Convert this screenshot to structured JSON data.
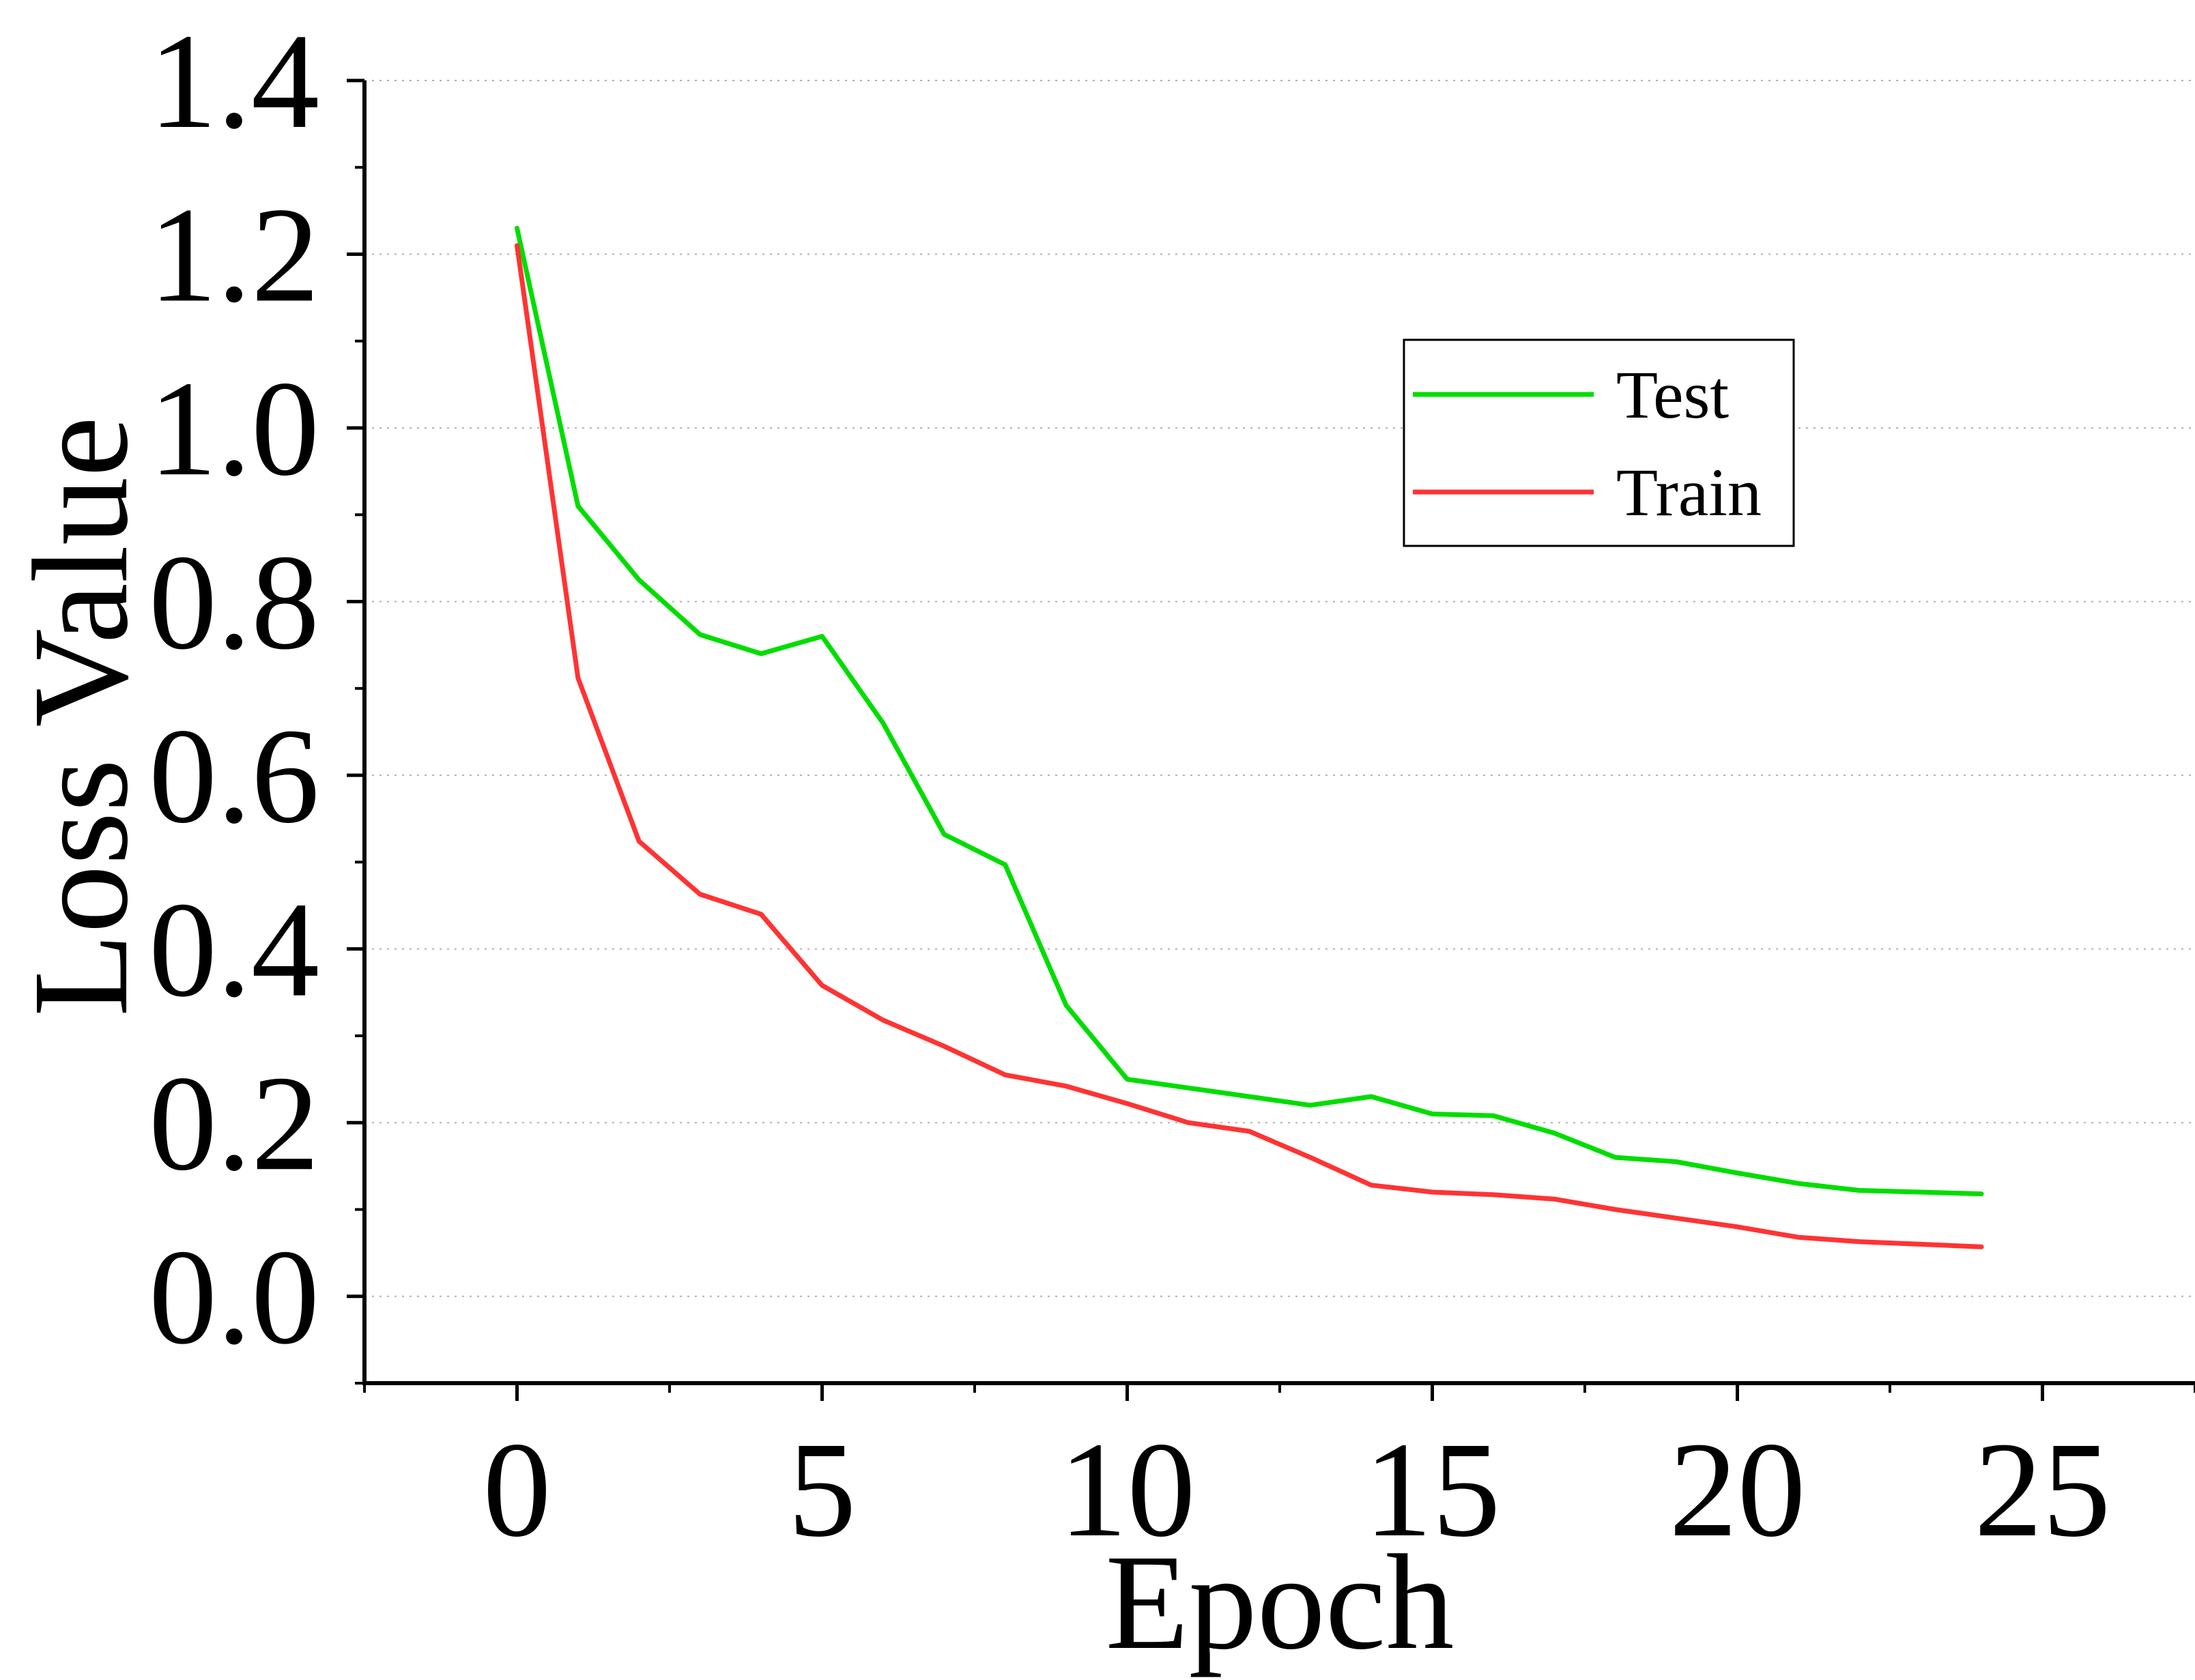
{
  "chart_data": {
    "type": "line",
    "xlabel": "Epoch",
    "ylabel": "Loss Value",
    "xlim": [
      -2.5,
      27.5
    ],
    "ylim": [
      -0.1,
      1.4
    ],
    "xticks": [
      0,
      5,
      10,
      15,
      20,
      25
    ],
    "xtick_labels": [
      "0",
      "5",
      "10",
      "15",
      "20",
      "25"
    ],
    "yticks": [
      0.0,
      0.2,
      0.4,
      0.6,
      0.8,
      1.0,
      1.2,
      1.4
    ],
    "ytick_labels": [
      "0.0",
      "0.2",
      "0.4",
      "0.6",
      "0.8",
      "1.0",
      "1.2",
      "1.4"
    ],
    "grid": "horizontal dotted",
    "legend_position": "upper-right",
    "x": [
      0,
      1,
      2,
      3,
      4,
      5,
      6,
      7,
      8,
      9,
      10,
      11,
      12,
      13,
      14,
      15,
      16,
      17,
      18,
      19,
      20,
      21,
      22,
      23,
      24
    ],
    "series": [
      {
        "name": "Test",
        "color": "#00dd00",
        "values": [
          1.23,
          0.91,
          0.825,
          0.762,
          0.74,
          0.76,
          0.66,
          0.532,
          0.497,
          0.335,
          0.25,
          0.24,
          0.23,
          0.22,
          0.23,
          0.21,
          0.208,
          0.188,
          0.16,
          0.155,
          0.142,
          0.13,
          0.122,
          0.12,
          0.118
        ]
      },
      {
        "name": "Train",
        "color": "#ff3333",
        "values": [
          1.21,
          0.712,
          0.524,
          0.463,
          0.44,
          0.358,
          0.318,
          0.288,
          0.255,
          0.242,
          0.222,
          0.2,
          0.19,
          0.16,
          0.128,
          0.12,
          0.117,
          0.112,
          0.1,
          0.09,
          0.08,
          0.068,
          0.063,
          0.06,
          0.057
        ]
      }
    ]
  }
}
